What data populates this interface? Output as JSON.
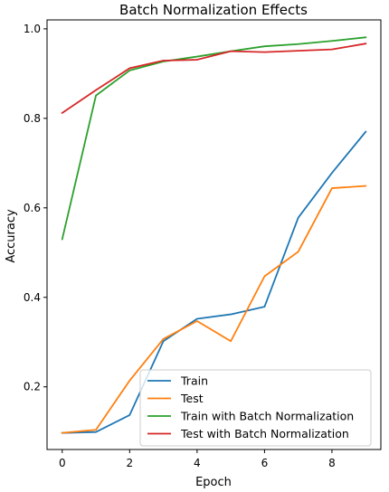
{
  "chart_data": {
    "type": "line",
    "title": "Batch Normalization Effects",
    "xlabel": "Epoch",
    "ylabel": "Accuracy",
    "x": [
      0,
      1,
      2,
      3,
      4,
      5,
      6,
      7,
      8,
      9
    ],
    "xlim": [
      -0.45,
      9.45
    ],
    "ylim": [
      0.06,
      1.02
    ],
    "xticks": [
      0,
      2,
      4,
      6,
      8
    ],
    "xtick_labels": [
      "0",
      "2",
      "4",
      "6",
      "8"
    ],
    "yticks": [
      0.2,
      0.4,
      0.6,
      0.8,
      1.0
    ],
    "ytick_labels": [
      "0.2",
      "0.4",
      "0.6",
      "0.8",
      "1.0"
    ],
    "grid": false,
    "legend_position": "bottom-right",
    "series": [
      {
        "name": "Train",
        "color": "#1f77b4",
        "values": [
          0.097,
          0.099,
          0.137,
          0.302,
          0.352,
          0.362,
          0.379,
          0.578,
          0.678,
          0.77
        ]
      },
      {
        "name": "Test",
        "color": "#ff7f0e",
        "values": [
          0.097,
          0.104,
          0.214,
          0.307,
          0.347,
          0.302,
          0.447,
          0.502,
          0.644,
          0.649
        ]
      },
      {
        "name": "Train with Batch Normalization",
        "color": "#2ca02c",
        "values": [
          0.53,
          0.851,
          0.907,
          0.927,
          0.938,
          0.95,
          0.961,
          0.966,
          0.973,
          0.981
        ]
      },
      {
        "name": "Test with Batch Normalization",
        "color": "#d62728",
        "values": [
          0.812,
          0.863,
          0.912,
          0.929,
          0.931,
          0.95,
          0.948,
          0.951,
          0.954,
          0.967
        ]
      }
    ]
  }
}
